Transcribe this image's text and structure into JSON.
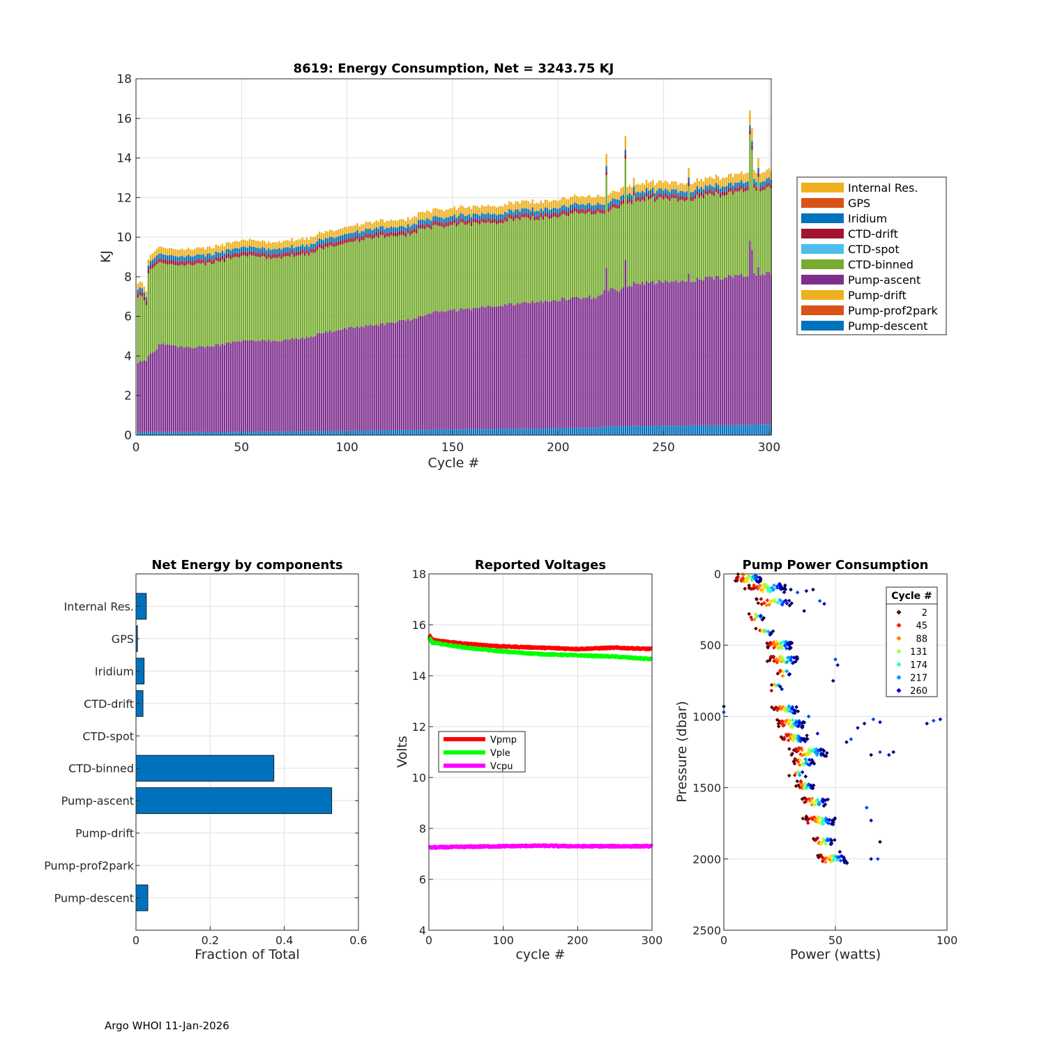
{
  "footer": "Argo WHOI 11-Jan-2026",
  "chart_data": [
    {
      "type": "bar",
      "stacked": true,
      "title": "8619: Energy Consumption,  Net = 3243.75 KJ",
      "xlabel": "Cycle #",
      "ylabel": "KJ",
      "xlim": [
        0,
        301
      ],
      "ylim": [
        0,
        18
      ],
      "xticks": [
        0,
        50,
        100,
        150,
        200,
        250,
        300
      ],
      "yticks": [
        0,
        2,
        4,
        6,
        8,
        10,
        12,
        14,
        16,
        18
      ],
      "legend_position": "outside-right",
      "legend": [
        "Internal Res.",
        "GPS",
        "Iridium",
        "CTD-drift",
        "CTD-spot",
        "CTD-binned",
        "Pump-ascent",
        "Pump-drift",
        "Pump-prof2park",
        "Pump-descent"
      ],
      "colors": {
        "Internal Res.": "#EDB120",
        "GPS": "#D95319",
        "Iridium": "#0072BD",
        "CTD-drift": "#A2142F",
        "CTD-spot": "#4DBEEE",
        "CTD-binned": "#77AC30",
        "Pump-ascent": "#7E2F8E",
        "Pump-drift": "#EDB120",
        "Pump-prof2park": "#D95319",
        "Pump-descent": "#0072BD"
      },
      "stack_order_bottom_to_top": [
        "Pump-descent",
        "Pump-ascent",
        "CTD-binned",
        "CTD-drift",
        "Iridium",
        "Internal Res."
      ],
      "cycle_range": [
        1,
        301
      ],
      "keypoints": {
        "cycles": [
          1,
          3,
          5,
          6,
          10,
          11,
          20,
          30,
          40,
          50,
          60,
          70,
          80,
          90,
          100,
          110,
          120,
          130,
          135,
          140,
          150,
          160,
          170,
          180,
          190,
          200,
          210,
          220,
          222,
          230,
          240,
          250,
          251,
          260,
          270,
          280,
          290,
          300,
          301
        ],
        "Pump-descent": [
          0.15,
          0.15,
          0.15,
          0.15,
          0.15,
          0.15,
          0.15,
          0.15,
          0.16,
          0.17,
          0.18,
          0.19,
          0.2,
          0.21,
          0.22,
          0.23,
          0.25,
          0.26,
          0.27,
          0.28,
          0.29,
          0.3,
          0.31,
          0.32,
          0.33,
          0.35,
          0.36,
          0.38,
          0.45,
          0.45,
          0.47,
          0.48,
          0.48,
          0.49,
          0.5,
          0.5,
          0.52,
          0.55,
          0.55
        ],
        "Pump-ascent": [
          3.5,
          3.6,
          3.6,
          3.9,
          4.2,
          4.5,
          4.3,
          4.3,
          4.4,
          4.6,
          4.6,
          4.6,
          4.7,
          5.0,
          5.2,
          5.3,
          5.4,
          5.6,
          5.7,
          5.9,
          6.0,
          6.1,
          6.2,
          6.3,
          6.4,
          6.5,
          6.6,
          6.6,
          6.9,
          6.9,
          7.2,
          7.3,
          7.3,
          7.3,
          7.4,
          7.5,
          7.6,
          7.6,
          7.6
        ],
        "CTD-binned": [
          3.3,
          3.3,
          2.8,
          4.2,
          4.3,
          4.1,
          4.1,
          4.2,
          4.2,
          4.3,
          4.2,
          4.2,
          4.2,
          4.3,
          4.3,
          4.4,
          4.4,
          4.3,
          4.4,
          4.3,
          4.3,
          4.3,
          4.2,
          4.3,
          4.2,
          4.2,
          4.3,
          4.2,
          3.9,
          4.2,
          4.2,
          4.2,
          4.2,
          4.1,
          4.2,
          4.2,
          4.3,
          4.3,
          4.3
        ],
        "CTD-drift": [
          0.2,
          0.2,
          0.2,
          0.2,
          0.2,
          0.2,
          0.2,
          0.2,
          0.2,
          0.2,
          0.2,
          0.2,
          0.2,
          0.2,
          0.2,
          0.2,
          0.2,
          0.2,
          0.2,
          0.2,
          0.2,
          0.2,
          0.2,
          0.2,
          0.2,
          0.2,
          0.2,
          0.2,
          0.2,
          0.2,
          0.2,
          0.2,
          0.2,
          0.2,
          0.2,
          0.2,
          0.2,
          0.2,
          0.2
        ],
        "Iridium": [
          0.2,
          0.2,
          0.2,
          0.2,
          0.25,
          0.25,
          0.25,
          0.25,
          0.25,
          0.25,
          0.25,
          0.25,
          0.25,
          0.25,
          0.25,
          0.25,
          0.25,
          0.25,
          0.25,
          0.25,
          0.25,
          0.25,
          0.25,
          0.25,
          0.25,
          0.25,
          0.25,
          0.25,
          0.25,
          0.25,
          0.25,
          0.25,
          0.25,
          0.25,
          0.25,
          0.25,
          0.25,
          0.25,
          0.25
        ],
        "Internal Res.": [
          0.3,
          0.3,
          0.3,
          0.3,
          0.35,
          0.35,
          0.35,
          0.35,
          0.35,
          0.35,
          0.35,
          0.35,
          0.35,
          0.35,
          0.35,
          0.35,
          0.35,
          0.35,
          0.4,
          0.4,
          0.4,
          0.4,
          0.4,
          0.4,
          0.4,
          0.4,
          0.4,
          0.4,
          0.4,
          0.4,
          0.4,
          0.4,
          0.4,
          0.4,
          0.4,
          0.45,
          0.45,
          0.45,
          0.45
        ]
      },
      "spikes": [
        {
          "cycle": 223,
          "total": 14.2
        },
        {
          "cycle": 232,
          "total": 15.1
        },
        {
          "cycle": 236,
          "total": 13.0
        },
        {
          "cycle": 262,
          "total": 13.5
        },
        {
          "cycle": 291,
          "total": 16.4
        },
        {
          "cycle": 292,
          "total": 15.5
        },
        {
          "cycle": 295,
          "total": 14.0
        }
      ]
    },
    {
      "type": "bar",
      "orientation": "horizontal",
      "title": "Net Energy by components",
      "xlabel": "Fraction of Total",
      "xlim": [
        0,
        0.6
      ],
      "xticks": [
        0,
        0.2,
        0.4,
        0.6
      ],
      "xticklabels": [
        "0",
        "0.2",
        "0.4",
        "0.6"
      ],
      "categories": [
        "Internal Res.",
        "GPS",
        "Iridium",
        "CTD-drift",
        "CTD-spot",
        "CTD-binned",
        "Pump-ascent",
        "Pump-drift",
        "Pump-prof2park",
        "Pump-descent"
      ],
      "values": [
        0.028,
        0.004,
        0.022,
        0.019,
        0.0,
        0.372,
        0.528,
        0.0,
        0.0,
        0.032
      ],
      "color": "#0072BD"
    },
    {
      "type": "line",
      "title": "Reported Voltages",
      "xlabel": "cycle #",
      "ylabel": "Volts",
      "xlim": [
        0,
        300
      ],
      "ylim": [
        4,
        18
      ],
      "xticks": [
        0,
        100,
        200,
        300
      ],
      "yticks": [
        4,
        6,
        8,
        10,
        12,
        14,
        16,
        18
      ],
      "legend_position": "center-left",
      "series": [
        {
          "name": "Vpmp",
          "color": "#FF0000",
          "x": [
            0,
            5,
            50,
            100,
            150,
            200,
            250,
            300
          ],
          "values": [
            15.6,
            15.4,
            15.25,
            15.15,
            15.1,
            15.05,
            15.1,
            15.05
          ]
        },
        {
          "name": "Vple",
          "color": "#00FF00",
          "x": [
            0,
            5,
            50,
            100,
            150,
            200,
            250,
            300
          ],
          "values": [
            15.5,
            15.3,
            15.1,
            14.95,
            14.85,
            14.8,
            14.75,
            14.65
          ]
        },
        {
          "name": "Vcpu",
          "color": "#FF00FF",
          "x": [
            0,
            50,
            100,
            150,
            200,
            250,
            300
          ],
          "values": [
            7.25,
            7.28,
            7.3,
            7.32,
            7.3,
            7.3,
            7.3
          ]
        }
      ]
    },
    {
      "type": "scatter",
      "title": "Pump Power Consumption",
      "xlabel": "Power (watts)",
      "ylabel": "Pressure (dbar)",
      "xlim": [
        0,
        100
      ],
      "ylim": [
        2500,
        0
      ],
      "y_reversed": true,
      "xticks": [
        0,
        50,
        100
      ],
      "yticks": [
        0,
        500,
        1000,
        1500,
        2000,
        2500
      ],
      "legend_title": "Cycle #",
      "legend_position": "top-right",
      "legend": [
        {
          "label": "2",
          "color": "#5A0000"
        },
        {
          "label": "45",
          "color": "#FF1A00"
        },
        {
          "label": "88",
          "color": "#FF7F00"
        },
        {
          "label": "131",
          "color": "#A0FF40"
        },
        {
          "label": "174",
          "color": "#20FFD0"
        },
        {
          "label": "217",
          "color": "#1090FF"
        },
        {
          "label": "260",
          "color": "#0000E0"
        }
      ],
      "colormap": [
        "#5A0000",
        "#C00000",
        "#FF2000",
        "#FF8000",
        "#FFE000",
        "#A0FF40",
        "#20FFD0",
        "#00A0FF",
        "#0040FF",
        "#0000C0",
        "#000060"
      ],
      "bands": [
        {
          "p": 30,
          "w0": 5,
          "w1": 17,
          "n": 40
        },
        {
          "p": 100,
          "w0": 10,
          "w1": 28,
          "n": 45
        },
        {
          "p": 200,
          "w0": 14,
          "w1": 30,
          "n": 28
        },
        {
          "p": 300,
          "w0": 12,
          "w1": 18,
          "n": 12
        },
        {
          "p": 400,
          "w0": 15,
          "w1": 22,
          "n": 12
        },
        {
          "p": 500,
          "w0": 19,
          "w1": 31,
          "n": 45
        },
        {
          "p": 600,
          "w0": 20,
          "w1": 33,
          "n": 40
        },
        {
          "p": 700,
          "w0": 24,
          "w1": 30,
          "n": 10
        },
        {
          "p": 800,
          "w0": 21,
          "w1": 26,
          "n": 8
        },
        {
          "p": 950,
          "w0": 22,
          "w1": 33,
          "n": 30
        },
        {
          "p": 1050,
          "w0": 24,
          "w1": 36,
          "n": 45
        },
        {
          "p": 1150,
          "w0": 26,
          "w1": 37,
          "n": 40
        },
        {
          "p": 1250,
          "w0": 30,
          "w1": 46,
          "n": 48
        },
        {
          "p": 1320,
          "w0": 31,
          "w1": 40,
          "n": 25
        },
        {
          "p": 1400,
          "w0": 30,
          "w1": 36,
          "n": 8
        },
        {
          "p": 1480,
          "w0": 33,
          "w1": 40,
          "n": 25
        },
        {
          "p": 1600,
          "w0": 35,
          "w1": 46,
          "n": 30
        },
        {
          "p": 1730,
          "w0": 36,
          "w1": 50,
          "n": 40
        },
        {
          "p": 1880,
          "w0": 40,
          "w1": 49,
          "n": 25
        },
        {
          "p": 2000,
          "w0": 42,
          "w1": 55,
          "n": 40
        }
      ],
      "outliers": [
        {
          "w": 0,
          "p": 930
        },
        {
          "w": 0,
          "p": 970
        },
        {
          "w": 25,
          "p": 70
        },
        {
          "w": 30,
          "p": 110
        },
        {
          "w": 33,
          "p": 130
        },
        {
          "w": 37,
          "p": 120
        },
        {
          "w": 40,
          "p": 110
        },
        {
          "w": 43,
          "p": 190
        },
        {
          "w": 45,
          "p": 210
        },
        {
          "w": 36,
          "p": 260
        },
        {
          "w": 50,
          "p": 600
        },
        {
          "w": 51,
          "p": 640
        },
        {
          "w": 49,
          "p": 750
        },
        {
          "w": 38,
          "p": 1000
        },
        {
          "w": 42,
          "p": 1120
        },
        {
          "w": 55,
          "p": 1180
        },
        {
          "w": 57,
          "p": 1160
        },
        {
          "w": 60,
          "p": 1080
        },
        {
          "w": 63,
          "p": 1050
        },
        {
          "w": 67,
          "p": 1020
        },
        {
          "w": 70,
          "p": 1040
        },
        {
          "w": 91,
          "p": 1050
        },
        {
          "w": 94,
          "p": 1030
        },
        {
          "w": 97,
          "p": 1020
        },
        {
          "w": 66,
          "p": 1270
        },
        {
          "w": 70,
          "p": 1250
        },
        {
          "w": 74,
          "p": 1270
        },
        {
          "w": 76,
          "p": 1250
        },
        {
          "w": 64,
          "p": 1640
        },
        {
          "w": 66,
          "p": 1730
        },
        {
          "w": 70,
          "p": 1880
        },
        {
          "w": 69,
          "p": 2000
        },
        {
          "w": 66,
          "p": 2000
        },
        {
          "w": 52,
          "p": 1950
        }
      ]
    }
  ]
}
